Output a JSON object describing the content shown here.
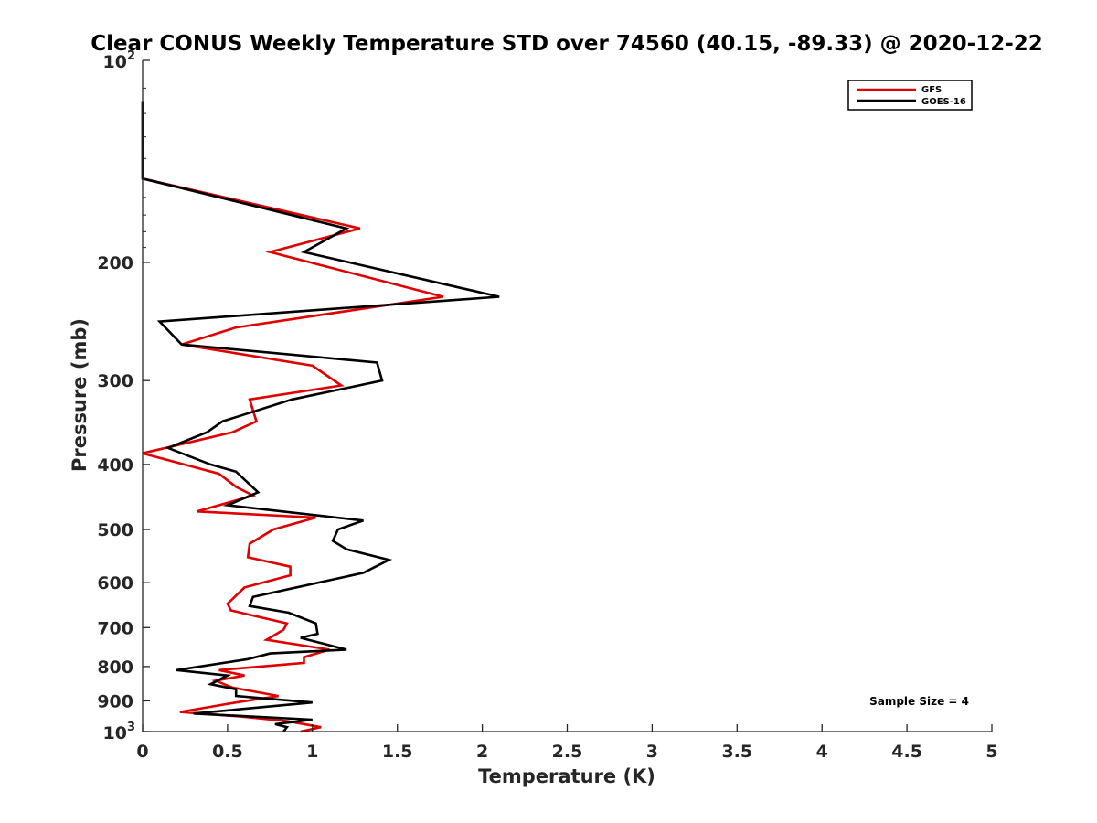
{
  "chart_data": {
    "type": "line",
    "title": "Clear CONUS Weekly Temperature STD over 74560 (40.15, -89.33) @ 2020-12-22",
    "xlabel": "Temperature (K)",
    "ylabel": "Pressure (mb)",
    "xlim": [
      0,
      5
    ],
    "ylim": [
      100,
      1000
    ],
    "y_scale": "log",
    "y_reversed": true,
    "grid": false,
    "legend_position": "top-right",
    "x_ticks": [
      "0",
      "0.5",
      "1",
      "1.5",
      "2",
      "2.5",
      "3",
      "3.5",
      "4",
      "4.5",
      "5"
    ],
    "x_tick_values": [
      0,
      0.5,
      1,
      1.5,
      2,
      2.5,
      3,
      3.5,
      4,
      4.5,
      5
    ],
    "y_ticks": [
      {
        "value": 100,
        "base": "10",
        "exp": "2",
        "label": ""
      },
      {
        "value": 200,
        "label": "200"
      },
      {
        "value": 300,
        "label": "300"
      },
      {
        "value": 400,
        "label": "400"
      },
      {
        "value": 500,
        "label": "500"
      },
      {
        "value": 600,
        "label": "600"
      },
      {
        "value": 700,
        "label": "700"
      },
      {
        "value": 800,
        "label": "800"
      },
      {
        "value": 900,
        "label": "900"
      },
      {
        "value": 1000,
        "base": "10",
        "exp": "3",
        "label": ""
      }
    ],
    "series": [
      {
        "name": "GFS",
        "color": "#e00000",
        "points": [
          [
            0,
            115
          ],
          [
            0,
            150
          ],
          [
            1.28,
            178
          ],
          [
            0.75,
            193
          ],
          [
            1.77,
            225
          ],
          [
            0.55,
            250
          ],
          [
            0.23,
            265
          ],
          [
            1.0,
            285
          ],
          [
            1.17,
            305
          ],
          [
            0.63,
            320
          ],
          [
            0.67,
            345
          ],
          [
            0.53,
            358
          ],
          [
            0.0,
            385
          ],
          [
            0.45,
            413
          ],
          [
            0.55,
            432
          ],
          [
            0.65,
            445
          ],
          [
            0.32,
            470
          ],
          [
            1.02,
            480
          ],
          [
            0.77,
            500
          ],
          [
            0.63,
            525
          ],
          [
            0.62,
            550
          ],
          [
            0.87,
            568
          ],
          [
            0.87,
            585
          ],
          [
            0.6,
            610
          ],
          [
            0.5,
            645
          ],
          [
            0.52,
            660
          ],
          [
            0.85,
            690
          ],
          [
            0.83,
            705
          ],
          [
            0.73,
            730
          ],
          [
            1.1,
            755
          ],
          [
            0.95,
            775
          ],
          [
            0.95,
            790
          ],
          [
            0.45,
            810
          ],
          [
            0.6,
            825
          ],
          [
            0.43,
            840
          ],
          [
            0.53,
            860
          ],
          [
            0.8,
            885
          ],
          [
            0.55,
            905
          ],
          [
            0.22,
            935
          ],
          [
            0.58,
            950
          ],
          [
            0.85,
            965
          ],
          [
            1.05,
            985
          ],
          [
            0.93,
            1000
          ]
        ]
      },
      {
        "name": "GOES-16",
        "color": "#000000",
        "points": [
          [
            0,
            115
          ],
          [
            0,
            150
          ],
          [
            1.2,
            178
          ],
          [
            0.95,
            193
          ],
          [
            2.1,
            225
          ],
          [
            0.1,
            245
          ],
          [
            0.23,
            265
          ],
          [
            1.38,
            282
          ],
          [
            1.41,
            300
          ],
          [
            0.88,
            320
          ],
          [
            0.47,
            345
          ],
          [
            0.38,
            358
          ],
          [
            0.15,
            378
          ],
          [
            0.4,
            400
          ],
          [
            0.55,
            410
          ],
          [
            0.68,
            440
          ],
          [
            0.5,
            460
          ],
          [
            1.3,
            485
          ],
          [
            1.15,
            500
          ],
          [
            1.12,
            520
          ],
          [
            1.2,
            535
          ],
          [
            1.45,
            555
          ],
          [
            1.3,
            580
          ],
          [
            0.65,
            630
          ],
          [
            0.63,
            650
          ],
          [
            0.86,
            665
          ],
          [
            1.02,
            690
          ],
          [
            1.03,
            715
          ],
          [
            0.93,
            725
          ],
          [
            1.2,
            755
          ],
          [
            0.75,
            765
          ],
          [
            0.62,
            780
          ],
          [
            0.2,
            810
          ],
          [
            0.5,
            825
          ],
          [
            0.4,
            850
          ],
          [
            0.55,
            865
          ],
          [
            0.55,
            885
          ],
          [
            1.0,
            905
          ],
          [
            0.3,
            940
          ],
          [
            1.0,
            960
          ],
          [
            0.78,
            975
          ],
          [
            0.85,
            985
          ],
          [
            0.83,
            1000
          ]
        ]
      }
    ],
    "annotation": "Sample Size = 4"
  }
}
